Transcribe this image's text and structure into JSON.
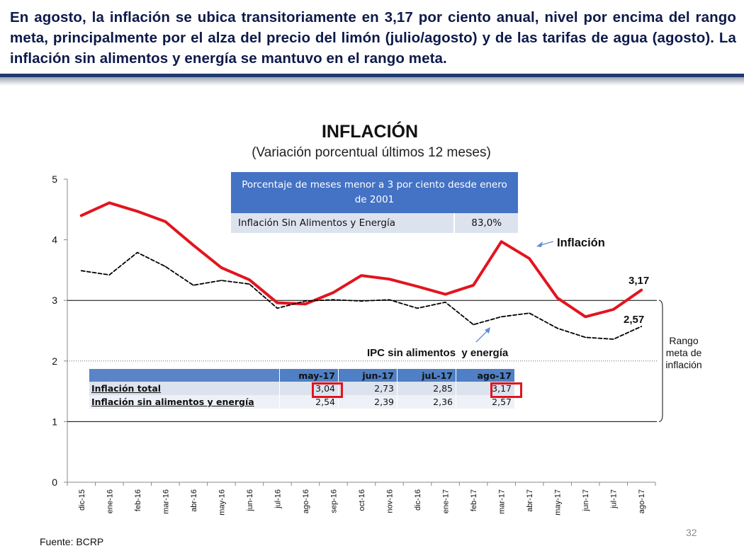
{
  "slide": {
    "headline": "En agosto, la inflación se ubica transitoriamente en 3,17 por ciento anual, nivel por encima del rango meta, principalmente por el alza del precio del limón (julio/agosto) y de las tarifas de agua (agosto). La inflación sin alimentos y energía se mantuvo en el rango meta.",
    "source": "Fuente: BCRP",
    "page_number": "32",
    "colors": {
      "headline": "#0d1a4a",
      "rule": "#1f3b73",
      "inflation": "#e3141e",
      "core": "#000000",
      "table_header": "#4472c4"
    }
  },
  "chart_data": {
    "type": "line",
    "title": "INFLACIÓN",
    "subtitle": "(Variación porcentual últimos 12 meses)",
    "categories": [
      "dic-15",
      "ene-16",
      "feb-16",
      "mar-16",
      "abr-16",
      "may-16",
      "jun-16",
      "jul-16",
      "ago-16",
      "sep-16",
      "oct-16",
      "nov-16",
      "dic-16",
      "ene-17",
      "feb-17",
      "mar-17",
      "abr-17",
      "may-17",
      "jun-17",
      "jul-17",
      "ago-17"
    ],
    "ylim": [
      0,
      5
    ],
    "yticks": [
      "0",
      "1",
      "2",
      "3",
      "4",
      "5"
    ],
    "series": [
      {
        "name": "Inflación",
        "style": "solid",
        "color": "#e3141e",
        "values": [
          4.4,
          4.61,
          4.47,
          4.3,
          3.91,
          3.54,
          3.34,
          2.96,
          2.94,
          3.13,
          3.41,
          3.35,
          3.23,
          3.1,
          3.25,
          3.97,
          3.69,
          3.04,
          2.73,
          2.85,
          3.17
        ]
      },
      {
        "name": "IPC sin alimentos  y energía",
        "style": "dashed",
        "color": "#000000",
        "values": [
          3.49,
          3.42,
          3.79,
          3.56,
          3.25,
          3.33,
          3.27,
          2.87,
          2.99,
          3.01,
          2.99,
          3.01,
          2.87,
          2.97,
          2.6,
          2.73,
          2.79,
          2.54,
          2.39,
          2.36,
          2.57
        ]
      }
    ],
    "end_labels": {
      "inflation": "3,17",
      "core": "2,57"
    },
    "target_range": {
      "lower": 1,
      "upper": 3,
      "label": "Rango meta de inflación",
      "label_lines": [
        "Rango",
        "meta de",
        "inflación"
      ]
    },
    "grid": "dotted line at 2",
    "legend": "inline labels"
  },
  "pct_table": {
    "header": "Porcentaje de meses menor a 3 por ciento desde enero de 2001",
    "row_label": "Inflación Sin Alimentos y Energía",
    "row_value": "83,0%"
  },
  "data_table": {
    "headers": [
      "",
      "may-17",
      "jun-17",
      "juL-17",
      "ago-17"
    ],
    "rows": [
      {
        "label": "Inflación total",
        "values": [
          "3,04",
          "2,73",
          "2,85",
          "3,17"
        ]
      },
      {
        "label": "Inflación sin alimentos y energía",
        "values": [
          "2,54",
          "2,39",
          "2,36",
          "2,57"
        ]
      }
    ],
    "highlighted": [
      "may-17 Inflación total",
      "ago-17 Inflación total"
    ]
  }
}
